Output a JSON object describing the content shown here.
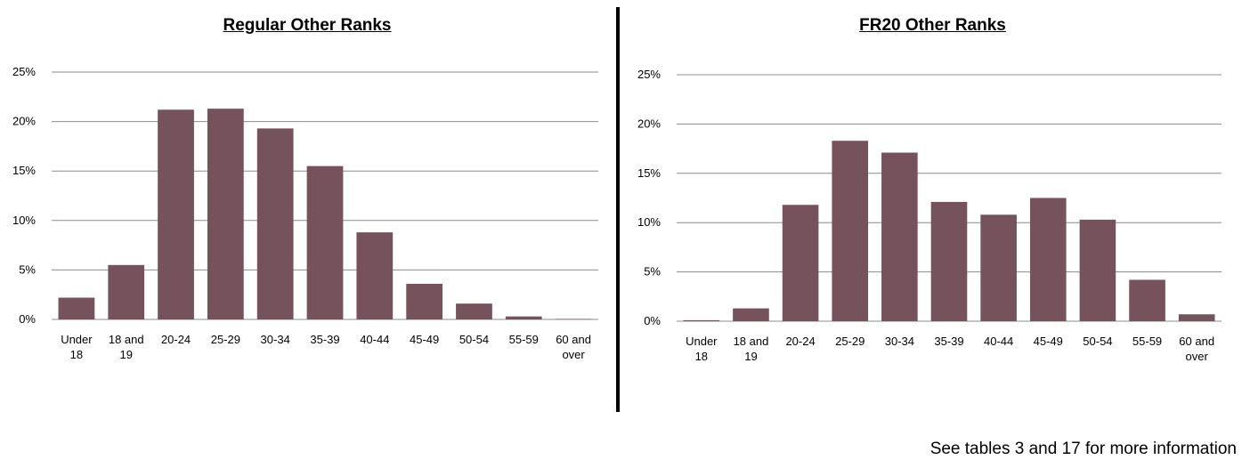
{
  "colors": {
    "bar": "#76525d",
    "grid": "#8c8c8c",
    "divider": "#000000"
  },
  "footnote": "See tables 3 and 17 for more information",
  "chart_data": [
    {
      "type": "bar",
      "title": "Regular Other Ranks",
      "categories": [
        [
          "Under",
          "18"
        ],
        [
          "18 and",
          "19"
        ],
        [
          "20-24"
        ],
        [
          "25-29"
        ],
        [
          "30-34"
        ],
        [
          "35-39"
        ],
        [
          "40-44"
        ],
        [
          "45-49"
        ],
        [
          "50-54"
        ],
        [
          "55-59"
        ],
        [
          "60 and",
          "over"
        ]
      ],
      "values": [
        2.2,
        5.5,
        21.2,
        21.3,
        19.3,
        15.5,
        8.8,
        3.6,
        1.6,
        0.3,
        0.05
      ],
      "yticks": [
        "0%",
        "5%",
        "10%",
        "15%",
        "20%",
        "25%"
      ],
      "ylim": [
        0,
        25
      ],
      "grid": true
    },
    {
      "type": "bar",
      "title": "FR20 Other Ranks",
      "categories": [
        [
          "Under",
          "18"
        ],
        [
          "18 and",
          "19"
        ],
        [
          "20-24"
        ],
        [
          "25-29"
        ],
        [
          "30-34"
        ],
        [
          "35-39"
        ],
        [
          "40-44"
        ],
        [
          "45-49"
        ],
        [
          "50-54"
        ],
        [
          "55-59"
        ],
        [
          "60 and",
          "over"
        ]
      ],
      "values": [
        0.1,
        1.3,
        11.8,
        18.3,
        17.1,
        12.1,
        10.8,
        12.5,
        10.3,
        4.2,
        0.7
      ],
      "yticks": [
        "0%",
        "5%",
        "10%",
        "15%",
        "20%",
        "25%"
      ],
      "ylim": [
        0,
        25
      ],
      "grid": true
    }
  ]
}
